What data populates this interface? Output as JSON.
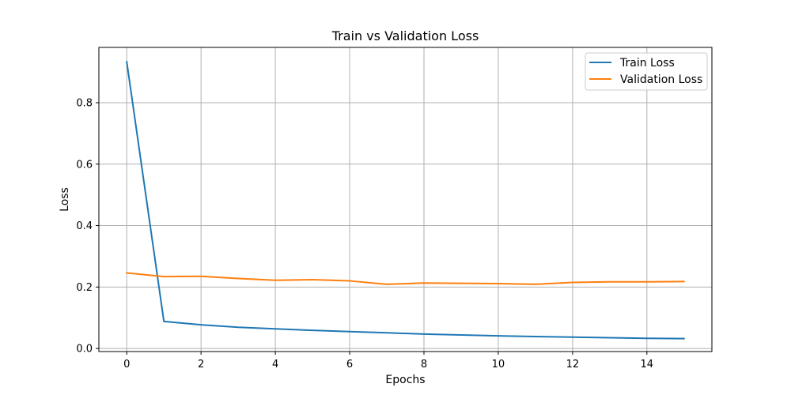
{
  "chart_data": {
    "type": "line",
    "title": "Train vs Validation Loss",
    "xlabel": "Epochs",
    "ylabel": "Loss",
    "xlim": [
      -0.75,
      15.75
    ],
    "ylim": [
      -0.01,
      0.98
    ],
    "xticks": [
      0,
      2,
      4,
      6,
      8,
      10,
      12,
      14
    ],
    "yticks": [
      0.0,
      0.2,
      0.4,
      0.6,
      0.8
    ],
    "xtick_labels": [
      "0",
      "2",
      "4",
      "6",
      "8",
      "10",
      "12",
      "14"
    ],
    "ytick_labels": [
      "0.0",
      "0.2",
      "0.4",
      "0.6",
      "0.8"
    ],
    "grid": true,
    "legend_position": "upper right",
    "x": [
      0,
      1,
      2,
      3,
      4,
      5,
      6,
      7,
      8,
      9,
      10,
      11,
      12,
      13,
      14,
      15
    ],
    "series": [
      {
        "name": "Train Loss",
        "color": "#1f77b4",
        "values": [
          0.933,
          0.088,
          0.077,
          0.069,
          0.064,
          0.059,
          0.055,
          0.051,
          0.047,
          0.044,
          0.041,
          0.039,
          0.037,
          0.035,
          0.033,
          0.032
        ]
      },
      {
        "name": "Validation Loss",
        "color": "#ff7f0e",
        "values": [
          0.246,
          0.234,
          0.235,
          0.228,
          0.222,
          0.224,
          0.22,
          0.209,
          0.213,
          0.212,
          0.211,
          0.209,
          0.215,
          0.217,
          0.217,
          0.218
        ]
      }
    ]
  }
}
